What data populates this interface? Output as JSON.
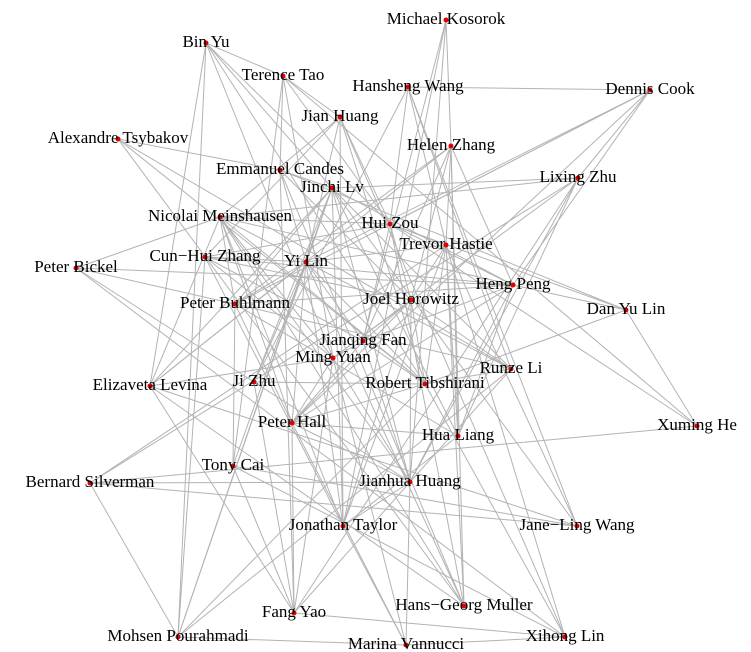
{
  "nodes": [
    {
      "label": "Michael Kosorok"
    },
    {
      "label": "Bin Yu"
    },
    {
      "label": "Terence Tao"
    },
    {
      "label": "Hansheng Wang"
    },
    {
      "label": "Dennis Cook"
    },
    {
      "label": "Jian Huang"
    },
    {
      "label": "Alexandre Tsybakov"
    },
    {
      "label": "Helen Zhang"
    },
    {
      "label": "Emmanuel Candes"
    },
    {
      "label": "Lixing Zhu"
    },
    {
      "label": "Jinchi Lv"
    },
    {
      "label": "Nicolai Meinshausen"
    },
    {
      "label": "Hui Zou"
    },
    {
      "label": "Trevor Hastie"
    },
    {
      "label": "Cun−Hui Zhang"
    },
    {
      "label": "Yi Lin"
    },
    {
      "label": "Peter Bickel"
    },
    {
      "label": "Heng Peng"
    },
    {
      "label": "Peter Buhlmann"
    },
    {
      "label": "Joel Horowitz"
    },
    {
      "label": "Dan Yu Lin"
    },
    {
      "label": "Jianqing Fan"
    },
    {
      "label": "Ming Yuan"
    },
    {
      "label": "Runze Li"
    },
    {
      "label": "Elizaveta Levina"
    },
    {
      "label": "Ji Zhu"
    },
    {
      "label": "Robert Tibshirani"
    },
    {
      "label": "Peter Hall"
    },
    {
      "label": "Xuming He"
    },
    {
      "label": "Hua Liang"
    },
    {
      "label": "Tony Cai"
    },
    {
      "label": "Bernard Silverman"
    },
    {
      "label": "Jianhua Huang"
    },
    {
      "label": "Jonathan Taylor"
    },
    {
      "label": "Jane−Ling Wang"
    },
    {
      "label": "Hans−Georg Muller"
    },
    {
      "label": "Fang Yao"
    },
    {
      "label": "Mohsen Pourahmadi"
    },
    {
      "label": "Xihong Lin"
    },
    {
      "label": "Marina Vannucci"
    }
  ]
}
